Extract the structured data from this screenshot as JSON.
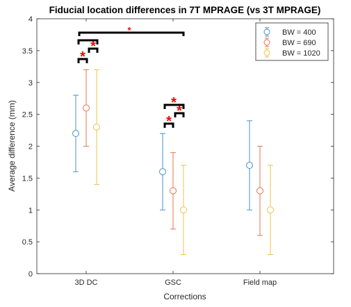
{
  "chart_data": {
    "type": "scatter",
    "title": "Fiducial location differences in 7T MPRAGE (vs 3T MPRAGE)",
    "xlabel": "Corrections",
    "ylabel": "Average difference (mm)",
    "categories": [
      "3D DC",
      "GSC",
      "Field map"
    ],
    "ylim": [
      0,
      4
    ],
    "yticks": [
      "0",
      "0.5",
      "1",
      "1.5",
      "2",
      "2.5",
      "3",
      "3.5",
      "4"
    ],
    "grid": false,
    "legend_position": "top-right",
    "series": [
      {
        "name": "BW = 400",
        "color": "#4a90c8",
        "values": [
          2.2,
          1.6,
          1.7
        ],
        "lower": [
          1.6,
          1.0,
          1.0
        ],
        "upper": [
          2.8,
          2.2,
          2.4
        ]
      },
      {
        "name": "BW = 690",
        "color": "#e8734f",
        "values": [
          2.6,
          1.3,
          1.3
        ],
        "lower": [
          2.0,
          0.7,
          0.6
        ],
        "upper": [
          3.2,
          1.9,
          2.0
        ]
      },
      {
        "name": "BW = 1020",
        "color": "#f0c04a",
        "values": [
          2.3,
          1.0,
          1.0
        ],
        "lower": [
          1.4,
          0.3,
          0.3
        ],
        "upper": [
          3.2,
          1.7,
          1.7
        ]
      }
    ],
    "annotations": {
      "symbol": "*",
      "color": "#ff0000",
      "bracket_color": "#000000"
    }
  }
}
